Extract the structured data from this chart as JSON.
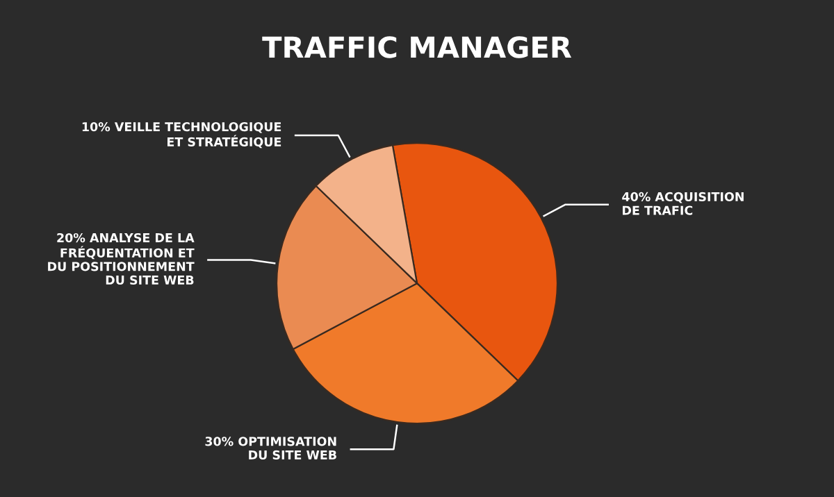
{
  "chart_data": {
    "type": "pie",
    "title": "TRAFFIC MANAGER",
    "categories": [
      "ACQUISITION\nDE TRAFIC",
      "OPTIMISATION\nDU SITE WEB",
      "ANALYSE DE LA\nFRÉQUENTATION ET\nDU POSITIONNEMENT\nDU SITE WEB",
      "VEILLE TECHNOLOGIQUE\nET STRATÉGIQUE"
    ],
    "values": [
      40,
      30,
      20,
      10
    ],
    "value_labels": [
      "40%",
      "30%",
      "20%",
      "10%"
    ],
    "colors": [
      "#e8560f",
      "#f07a2a",
      "#ea8b52",
      "#f3b28a"
    ]
  }
}
